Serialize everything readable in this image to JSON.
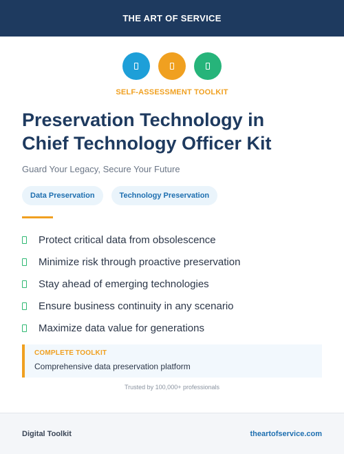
{
  "header": {
    "brand": "THE ART OF SERVICE"
  },
  "icons": [
    {
      "name": "blue-circle-icon",
      "color": "#1e9fd8"
    },
    {
      "name": "orange-circle-icon",
      "color": "#f0a020"
    },
    {
      "name": "green-circle-icon",
      "color": "#26b47a"
    }
  ],
  "kicker": "SELF-ASSESSMENT TOOLKIT",
  "title_lines": [
    "Preservation Technology in",
    "Chief Technology Officer Kit"
  ],
  "subtitle": "Guard Your Legacy, Secure Your Future",
  "tags": [
    "Data Preservation",
    "Technology Preservation"
  ],
  "benefits": [
    "Protect critical data from obsolescence",
    "Minimize risk through proactive preservation",
    "Stay ahead of emerging technologies",
    "Ensure business continuity in any scenario",
    "Maximize data value for generations"
  ],
  "toolkit": {
    "label": "COMPLETE TOOLKIT",
    "description": "Comprehensive data preservation platform"
  },
  "trusted": "Trusted by 100,000+ professionals",
  "footer": {
    "left": "Digital Toolkit",
    "right": "theartofservice.com"
  },
  "colors": {
    "navy": "#1e3a5f",
    "accent": "#f0a020",
    "check": "#2eb872"
  }
}
